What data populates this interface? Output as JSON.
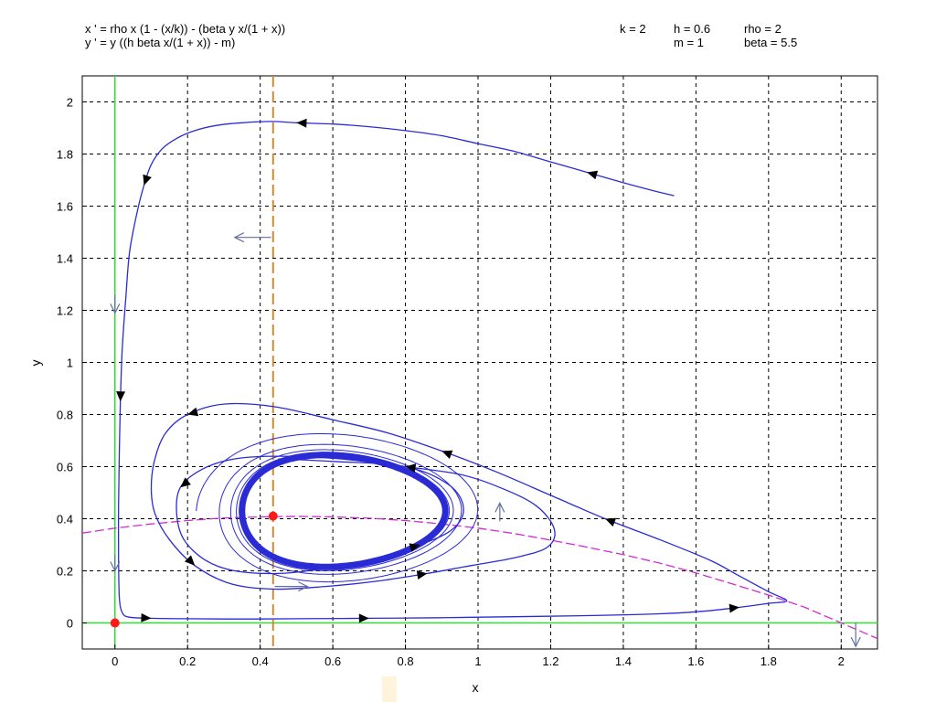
{
  "header": {
    "equation_x": "x ' = rho x (1 - (x/k)) - (beta y x/(1 + x))",
    "equation_y": "y ' = y ((h beta x/(1 + x)) - m)",
    "param_k": "k = 2",
    "param_h": "h = 0.6",
    "param_rho": "rho = 2",
    "param_m": "m = 1",
    "param_beta": "beta = 5.5"
  },
  "chart_data": {
    "type": "line",
    "title": "",
    "xlabel": "x",
    "ylabel": "y",
    "xlim": [
      -0.09,
      2.1
    ],
    "ylim": [
      -0.1,
      2.1
    ],
    "xticks": [
      0,
      0.2,
      0.4,
      0.6,
      0.8,
      1,
      1.2,
      1.4,
      1.6,
      1.8,
      2
    ],
    "xtick_labels": [
      "0",
      "0.2",
      "0.4",
      "0.6",
      "0.8",
      "1",
      "1.2",
      "1.4",
      "1.6",
      "1.8",
      "2"
    ],
    "yticks": [
      0,
      0.2,
      0.4,
      0.6,
      0.8,
      1,
      1.2,
      1.4,
      1.6,
      1.8,
      2
    ],
    "ytick_labels": [
      "0",
      "0.2",
      "0.4",
      "0.6",
      "0.8",
      "1",
      "1.2",
      "1.4",
      "1.6",
      "1.8",
      "2"
    ],
    "grid": true,
    "colors": {
      "trajectory": "#2b2bd6",
      "x_nullcline_axis": "#33dd33",
      "y_nullcline": "#d08a30",
      "x_nullcline_curve": "#d22bd2",
      "equilibrium": "#ff1a1a",
      "direction_arrow": "#6070a0"
    },
    "nullclines": {
      "x_equals_zero": {
        "x": 0
      },
      "y_equals_zero": {
        "y": 0
      },
      "vertical": {
        "x": 0.4355
      },
      "curve": {
        "x": [
          -0.09,
          0,
          0.1,
          0.2,
          0.3,
          0.4,
          0.5,
          0.6,
          0.7,
          0.8,
          0.9,
          1.0,
          1.1,
          1.2,
          1.3,
          1.4,
          1.5,
          1.6,
          1.7,
          1.8,
          1.9,
          2.0,
          2.1
        ],
        "y": [
          0.345,
          0.364,
          0.38,
          0.393,
          0.403,
          0.407,
          0.409,
          0.407,
          0.402,
          0.393,
          0.38,
          0.364,
          0.343,
          0.318,
          0.291,
          0.262,
          0.23,
          0.192,
          0.15,
          0.107,
          0.06,
          0.0,
          -0.06
        ]
      }
    },
    "equilibria": [
      {
        "x": 0,
        "y": 0
      },
      {
        "x": 0.4355,
        "y": 0.41
      }
    ],
    "series": [
      {
        "x": [
          1.54,
          1.48,
          1.4,
          1.3,
          1.2,
          1.1,
          1.0,
          0.9,
          0.8,
          0.7,
          0.6,
          0.5,
          0.43,
          0.35,
          0.28,
          0.22,
          0.17,
          0.13,
          0.1,
          0.08,
          0.06,
          0.04,
          0.03,
          0.02,
          0.015,
          0.012,
          0.01,
          0.01,
          0.012,
          0.02,
          0.04,
          0.1,
          0.2,
          0.35,
          0.5,
          0.7,
          0.9,
          1.1,
          1.3,
          1.5,
          1.62,
          1.72,
          1.8,
          1.85,
          1.8,
          1.72,
          1.64,
          1.5,
          1.35,
          1.2,
          1.05,
          0.9,
          0.75,
          0.6,
          0.44,
          0.3,
          0.2,
          0.14,
          0.11,
          0.1,
          0.11,
          0.15,
          0.22,
          0.32,
          0.44,
          0.58,
          0.72,
          0.86,
          0.98,
          1.1,
          1.19,
          1.21,
          1.16,
          1.06,
          0.95,
          0.8,
          0.62,
          0.45,
          0.33,
          0.24,
          0.18,
          0.17,
          0.19,
          0.25,
          0.33,
          0.45,
          0.58,
          0.72,
          0.84,
          0.93,
          0.96,
          0.92,
          0.8,
          0.6,
          0.45
        ],
        "y": [
          1.64,
          1.66,
          1.69,
          1.73,
          1.77,
          1.81,
          1.84,
          1.87,
          1.89,
          1.905,
          1.915,
          1.92,
          1.925,
          1.92,
          1.91,
          1.89,
          1.86,
          1.82,
          1.76,
          1.68,
          1.57,
          1.42,
          1.25,
          1.05,
          0.85,
          0.65,
          0.45,
          0.25,
          0.1,
          0.04,
          0.022,
          0.018,
          0.016,
          0.015,
          0.016,
          0.018,
          0.02,
          0.024,
          0.028,
          0.035,
          0.045,
          0.06,
          0.075,
          0.085,
          0.12,
          0.18,
          0.24,
          0.32,
          0.4,
          0.49,
          0.58,
          0.66,
          0.73,
          0.78,
          0.83,
          0.84,
          0.8,
          0.73,
          0.63,
          0.52,
          0.42,
          0.32,
          0.22,
          0.15,
          0.13,
          0.14,
          0.16,
          0.19,
          0.22,
          0.25,
          0.29,
          0.36,
          0.45,
          0.52,
          0.57,
          0.6,
          0.63,
          0.64,
          0.63,
          0.59,
          0.52,
          0.42,
          0.32,
          0.24,
          0.2,
          0.19,
          0.21,
          0.25,
          0.3,
          0.36,
          0.44,
          0.53,
          0.6,
          0.62,
          0.63
        ]
      }
    ],
    "limit_cycle": {
      "center": [
        0.58,
        0.43
      ],
      "radii": [
        0.28,
        0.215
      ]
    },
    "field_arrows": [
      {
        "x": 0.43,
        "y": 1.48,
        "dx": -0.1,
        "dy": 0
      },
      {
        "x": 0.0,
        "y": 1.26,
        "dx": 0,
        "dy": -0.07
      },
      {
        "x": 0.0,
        "y": 0.26,
        "dx": 0,
        "dy": -0.06
      },
      {
        "x": 0.44,
        "y": 0.14,
        "dx": 0.09,
        "dy": 0
      },
      {
        "x": 1.06,
        "y": 0.39,
        "dx": 0,
        "dy": 0.07
      },
      {
        "x": 2.04,
        "y": 0.0,
        "dx": 0,
        "dy": -0.09
      }
    ]
  }
}
